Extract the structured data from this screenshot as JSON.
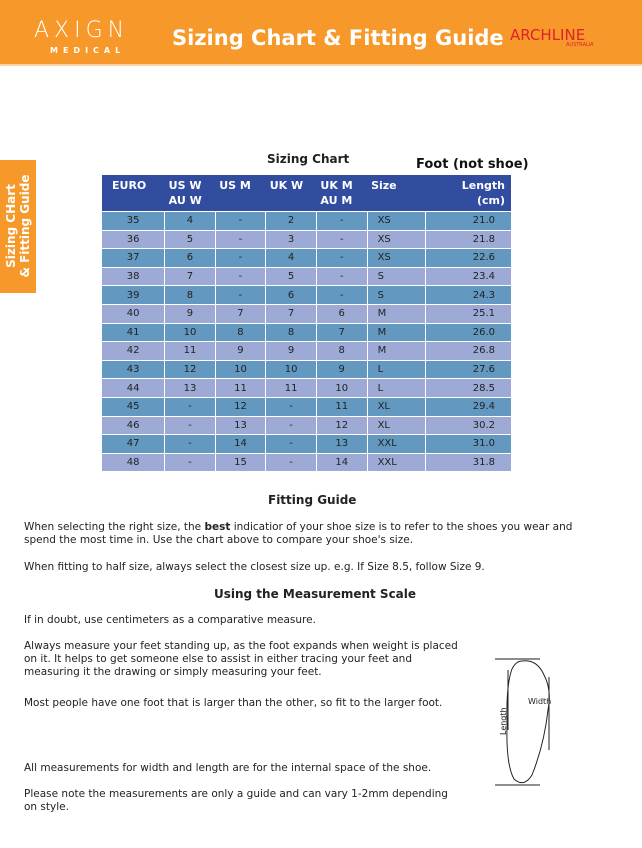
{
  "header": {
    "logo_left": "AXIGN",
    "logo_left_sub": "MEDICAL",
    "title": "Sizing Chart & Fitting Guide",
    "logo_right": "ARCHLINE",
    "logo_right_sub": "AUSTRALIA"
  },
  "side_tab": {
    "line1": "Sizing CHart",
    "line2": "& Fitting Guide"
  },
  "sizing": {
    "title": "Sizing Chart",
    "note": "Foot (not shoe)",
    "columns": [
      "EURO",
      "US W\nAU W",
      "US M",
      "UK W",
      "UK M\nAU M",
      "Size",
      "Length\n(cm)"
    ],
    "rows": [
      [
        "35",
        "4",
        "-",
        "2",
        "-",
        "XS",
        "21.0"
      ],
      [
        "36",
        "5",
        "-",
        "3",
        "-",
        "XS",
        "21.8"
      ],
      [
        "37",
        "6",
        "-",
        "4",
        "-",
        "XS",
        "22.6"
      ],
      [
        "38",
        "7",
        "-",
        "5",
        "-",
        "S",
        "23.4"
      ],
      [
        "39",
        "8",
        "-",
        "6",
        "-",
        "S",
        "24.3"
      ],
      [
        "40",
        "9",
        "7",
        "7",
        "6",
        "M",
        "25.1"
      ],
      [
        "41",
        "10",
        "8",
        "8",
        "7",
        "M",
        "26.0"
      ],
      [
        "42",
        "11",
        "9",
        "9",
        "8",
        "M",
        "26.8"
      ],
      [
        "43",
        "12",
        "10",
        "10",
        "9",
        "L",
        "27.6"
      ],
      [
        "44",
        "13",
        "11",
        "11",
        "10",
        "L",
        "28.5"
      ],
      [
        "45",
        "-",
        "12",
        "-",
        "11",
        "XL",
        "29.4"
      ],
      [
        "46",
        "-",
        "13",
        "-",
        "12",
        "XL",
        "30.2"
      ],
      [
        "47",
        "-",
        "14",
        "-",
        "13",
        "XXL",
        "31.0"
      ],
      [
        "48",
        "-",
        "15",
        "-",
        "14",
        "XXL",
        "31.8"
      ]
    ]
  },
  "fitting": {
    "title": "Fitting Guide",
    "p1_a": "When selecting the right size, the ",
    "p1_bold": "best",
    "p1_b": " indicatior of your shoe size is to refer to the shoes you wear and spend the most time in. Use the chart above to compare your shoe's size.",
    "p2": "When fitting to half size, always select the closest size up. e.g. If Size 8.5, follow Size 9."
  },
  "measure": {
    "title": "Using the Measurement Scale",
    "p1": "If in doubt, use centimeters as a comparative measure.",
    "p2": "Always measure your feet standing up, as the foot expands when weight is placed on it. It helps to get someone else to assist in either tracing your feet and measuring it the drawing or simply measuring your feet.",
    "p3": "Most people have one foot that is larger than the other, so fit to the larger foot.",
    "p4": "All measurements for width and length are for the internal space of the shoe.",
    "p5": "Please note the measurements are only a guide and can vary 1-2mm depending on style.",
    "diagram_length": "Length",
    "diagram_width": "Width"
  },
  "colors": {
    "orange": "#f7992a",
    "header_blue": "#324da0",
    "row_teal": "#6399c0",
    "row_lavender": "#9eaad6"
  }
}
